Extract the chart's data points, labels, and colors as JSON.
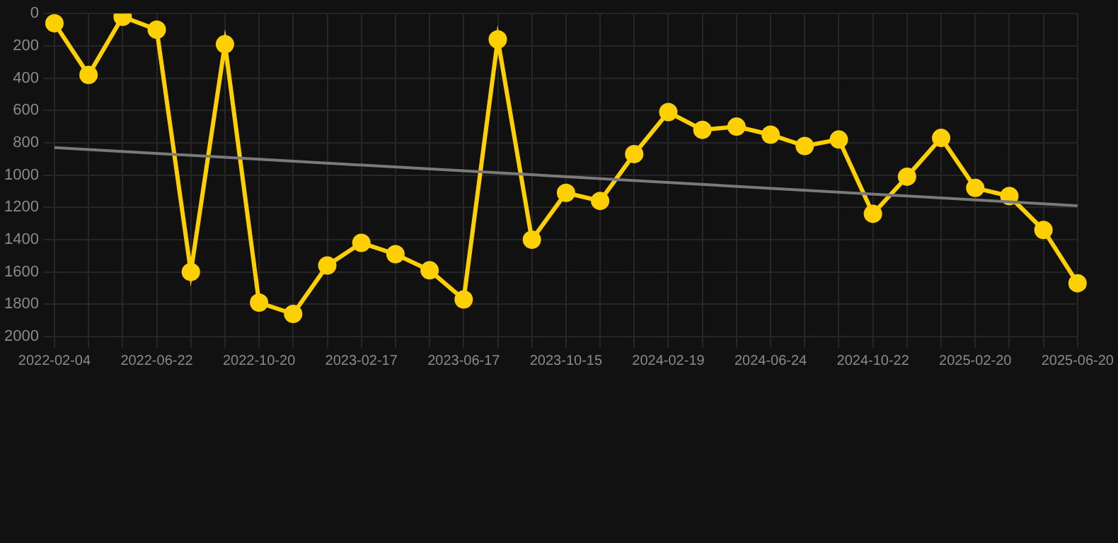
{
  "chart_data": {
    "type": "line",
    "categories": [
      "2022-02-04",
      null,
      null,
      "2022-06-22",
      null,
      null,
      "2022-10-20",
      null,
      null,
      "2023-02-17",
      null,
      null,
      "2023-06-17",
      null,
      null,
      "2023-10-15",
      null,
      null,
      "2024-02-19",
      null,
      null,
      "2024-06-24",
      null,
      null,
      "2024-10-22",
      null,
      null,
      "2025-02-20",
      null,
      null,
      "2025-06-20"
    ],
    "series": [
      {
        "color": "#ffd000",
        "marker": "circle",
        "values": [
          60,
          380,
          20,
          100,
          1600,
          190,
          1790,
          1860,
          1560,
          1420,
          1490,
          1590,
          1770,
          160,
          1400,
          1110,
          1160,
          870,
          610,
          720,
          700,
          750,
          820,
          780,
          1240,
          1010,
          770,
          1080,
          1130,
          1340,
          1670
        ]
      },
      {
        "type": "line",
        "color": "#7a7a7a",
        "marker": "none",
        "values": [
          830,
          null,
          null,
          null,
          null,
          null,
          null,
          null,
          null,
          null,
          null,
          null,
          null,
          null,
          null,
          null,
          null,
          null,
          null,
          null,
          null,
          null,
          null,
          null,
          null,
          null,
          null,
          null,
          null,
          null,
          1190
        ]
      }
    ],
    "ylim": [
      2000,
      0
    ],
    "yticks": [
      0,
      200,
      400,
      600,
      800,
      1000,
      1200,
      1400,
      1600,
      1800,
      2000
    ],
    "grid": true,
    "legend": false
  }
}
